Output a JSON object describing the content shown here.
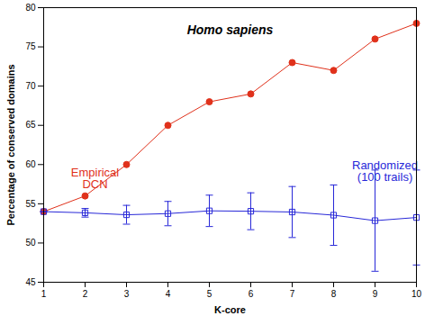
{
  "chart_data": {
    "type": "line",
    "title": "Homo sapiens",
    "x_label": "K-core",
    "y_label": "Percentage of conserved domains",
    "x": [
      1,
      2,
      3,
      4,
      5,
      6,
      7,
      8,
      9,
      10
    ],
    "xlim": [
      1,
      10
    ],
    "xticks": [
      1,
      2,
      3,
      4,
      5,
      6,
      7,
      8,
      9,
      10
    ],
    "ylim": [
      45,
      80
    ],
    "yticks": [
      45,
      50,
      55,
      60,
      65,
      70,
      75,
      80
    ],
    "grid": false,
    "series": [
      {
        "name": "Empirical DCN",
        "color": "#e0311b",
        "marker": "circle",
        "values": [
          54,
          56,
          60,
          65,
          68,
          69,
          73,
          72,
          76,
          78
        ]
      },
      {
        "name": "Randomized (100 trails)",
        "color": "#2828d8",
        "marker": "square",
        "values": [
          54,
          53.85,
          53.6,
          53.75,
          54.1,
          54.05,
          53.95,
          53.55,
          52.85,
          53.25
        ],
        "errors": [
          0,
          0.55,
          1.2,
          1.55,
          2.0,
          2.35,
          3.25,
          3.85,
          6.45,
          6.05
        ]
      }
    ]
  }
}
